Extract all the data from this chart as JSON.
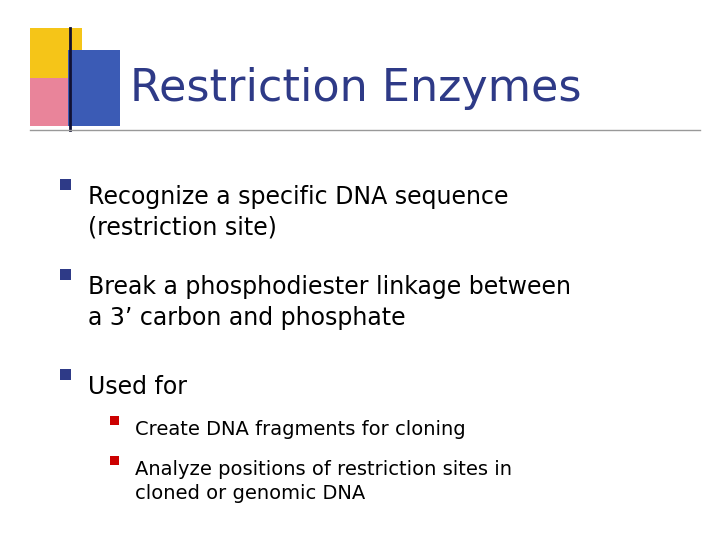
{
  "title": "Restriction Enzymes",
  "title_color": "#2E3A87",
  "background_color": "#FFFFFF",
  "bullet_color": "#2E3A87",
  "sub_bullet_color": "#CC0000",
  "text_color": "#000000",
  "bullets": [
    "Recognize a specific DNA sequence\n(restriction site)",
    "Break a phosphodiester linkage between\na 3’ carbon and phosphate",
    "Used for"
  ],
  "sub_bullets": [
    "Create DNA fragments for cloning",
    "Analyze positions of restriction sites in\ncloned or genomic DNA"
  ],
  "figsize": [
    7.2,
    5.4
  ],
  "dpi": 100
}
